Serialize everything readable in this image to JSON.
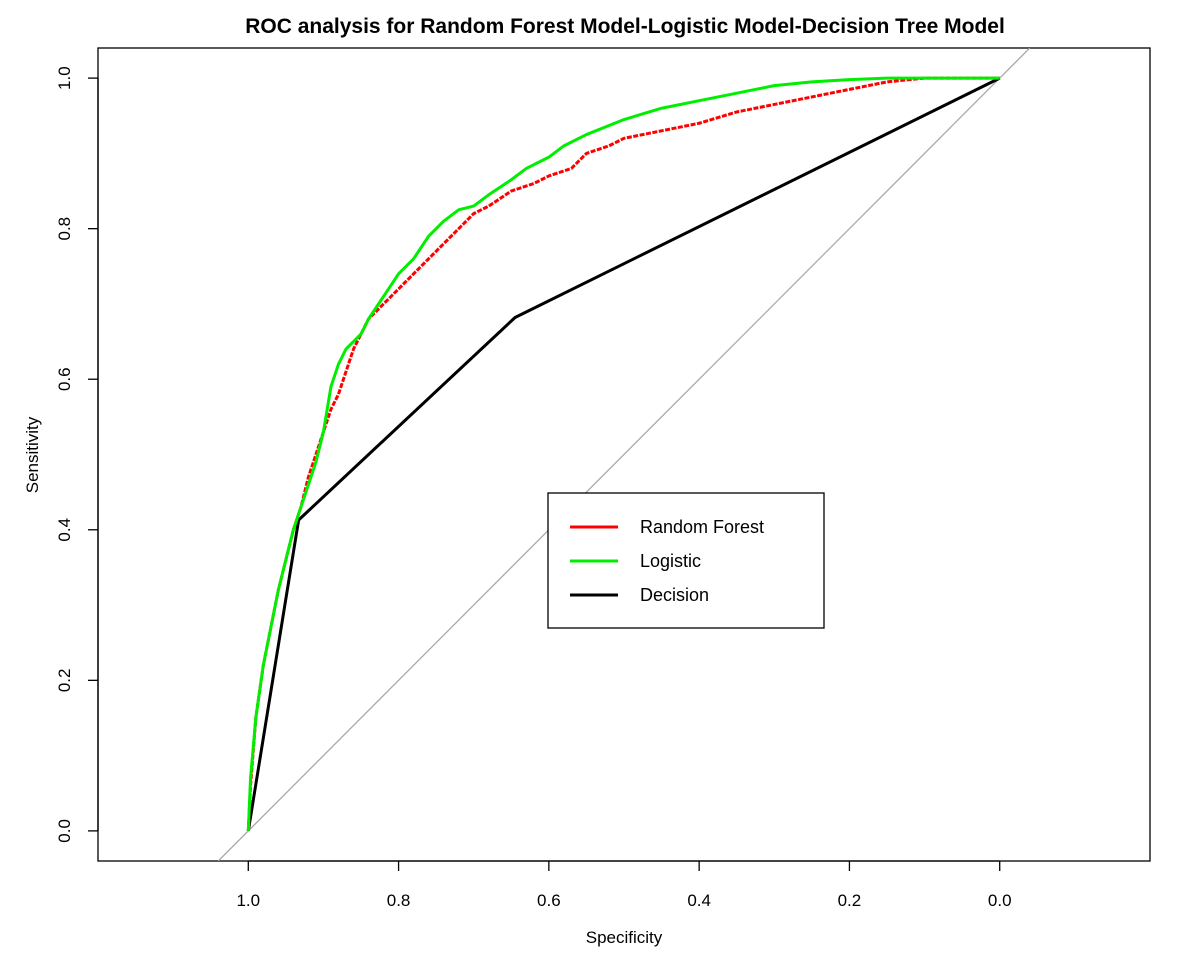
{
  "chart_data": {
    "type": "line",
    "title": "ROC analysis for Random Forest Model-Logistic Model-Decision Tree Model",
    "xlabel": "Specificity",
    "ylabel": "Sensitivity",
    "xlim": [
      1.2,
      -0.2
    ],
    "ylim": [
      -0.04,
      1.04
    ],
    "x_axis_reversed": true,
    "grid": false,
    "legend_position": "center",
    "x_ticks": [
      {
        "value": 1.0,
        "label": "1.0"
      },
      {
        "value": 0.8,
        "label": "0.8"
      },
      {
        "value": 0.6,
        "label": "0.6"
      },
      {
        "value": 0.4,
        "label": "0.4"
      },
      {
        "value": 0.2,
        "label": "0.2"
      },
      {
        "value": 0.0,
        "label": "0.0"
      }
    ],
    "y_ticks": [
      {
        "value": 0.0,
        "label": "0.0"
      },
      {
        "value": 0.2,
        "label": "0.2"
      },
      {
        "value": 0.4,
        "label": "0.4"
      },
      {
        "value": 0.6,
        "label": "0.6"
      },
      {
        "value": 0.8,
        "label": "0.8"
      },
      {
        "value": 1.0,
        "label": "1.0"
      }
    ],
    "reference_line": {
      "color": "#aaaaaa",
      "points": [
        [
          1.04,
          -0.04
        ],
        [
          -0.04,
          1.04
        ]
      ]
    },
    "series": [
      {
        "name": "Random Forest",
        "color": "#ff0000",
        "style": "dashed",
        "points": [
          [
            1.0,
            0.0
          ],
          [
            0.997,
            0.06
          ],
          [
            0.99,
            0.15
          ],
          [
            0.98,
            0.22
          ],
          [
            0.97,
            0.27
          ],
          [
            0.96,
            0.32
          ],
          [
            0.95,
            0.36
          ],
          [
            0.94,
            0.4
          ],
          [
            0.93,
            0.43
          ],
          [
            0.92,
            0.47
          ],
          [
            0.91,
            0.5
          ],
          [
            0.9,
            0.53
          ],
          [
            0.89,
            0.56
          ],
          [
            0.88,
            0.58
          ],
          [
            0.87,
            0.61
          ],
          [
            0.86,
            0.64
          ],
          [
            0.85,
            0.66
          ],
          [
            0.84,
            0.68
          ],
          [
            0.82,
            0.7
          ],
          [
            0.8,
            0.72
          ],
          [
            0.78,
            0.74
          ],
          [
            0.76,
            0.76
          ],
          [
            0.74,
            0.78
          ],
          [
            0.72,
            0.8
          ],
          [
            0.7,
            0.82
          ],
          [
            0.68,
            0.83
          ],
          [
            0.65,
            0.85
          ],
          [
            0.62,
            0.86
          ],
          [
            0.6,
            0.87
          ],
          [
            0.57,
            0.88
          ],
          [
            0.55,
            0.9
          ],
          [
            0.52,
            0.91
          ],
          [
            0.5,
            0.92
          ],
          [
            0.45,
            0.93
          ],
          [
            0.4,
            0.94
          ],
          [
            0.35,
            0.955
          ],
          [
            0.3,
            0.965
          ],
          [
            0.25,
            0.975
          ],
          [
            0.2,
            0.985
          ],
          [
            0.15,
            0.995
          ],
          [
            0.1,
            1.0
          ],
          [
            0.0,
            1.0
          ]
        ]
      },
      {
        "name": "Logistic",
        "color": "#00ee00",
        "style": "solid",
        "points": [
          [
            1.0,
            0.0
          ],
          [
            0.997,
            0.07
          ],
          [
            0.99,
            0.15
          ],
          [
            0.98,
            0.22
          ],
          [
            0.97,
            0.27
          ],
          [
            0.96,
            0.32
          ],
          [
            0.95,
            0.36
          ],
          [
            0.94,
            0.4
          ],
          [
            0.93,
            0.43
          ],
          [
            0.92,
            0.46
          ],
          [
            0.91,
            0.49
          ],
          [
            0.9,
            0.53
          ],
          [
            0.89,
            0.59
          ],
          [
            0.88,
            0.62
          ],
          [
            0.87,
            0.64
          ],
          [
            0.86,
            0.65
          ],
          [
            0.85,
            0.66
          ],
          [
            0.84,
            0.68
          ],
          [
            0.82,
            0.71
          ],
          [
            0.8,
            0.74
          ],
          [
            0.78,
            0.76
          ],
          [
            0.76,
            0.79
          ],
          [
            0.74,
            0.81
          ],
          [
            0.72,
            0.825
          ],
          [
            0.7,
            0.83
          ],
          [
            0.68,
            0.845
          ],
          [
            0.65,
            0.865
          ],
          [
            0.63,
            0.88
          ],
          [
            0.6,
            0.895
          ],
          [
            0.58,
            0.91
          ],
          [
            0.55,
            0.925
          ],
          [
            0.5,
            0.945
          ],
          [
            0.45,
            0.96
          ],
          [
            0.4,
            0.97
          ],
          [
            0.35,
            0.98
          ],
          [
            0.3,
            0.99
          ],
          [
            0.25,
            0.995
          ],
          [
            0.2,
            0.998
          ],
          [
            0.15,
            1.0
          ],
          [
            0.0,
            1.0
          ]
        ]
      },
      {
        "name": "Decision",
        "color": "#000000",
        "style": "solid",
        "points": [
          [
            1.0,
            0.0
          ],
          [
            0.933,
            0.413
          ],
          [
            0.645,
            0.682
          ],
          [
            0.0,
            1.0
          ]
        ]
      }
    ]
  }
}
